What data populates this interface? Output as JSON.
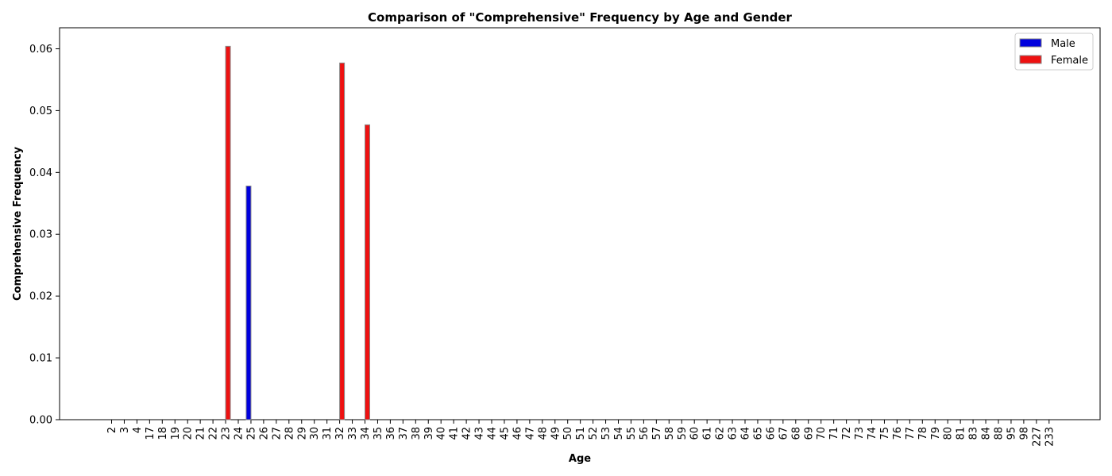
{
  "chart_data": {
    "type": "bar",
    "title": "Comparison of \"Comprehensive\" Frequency by Age and Gender",
    "xlabel": "Age",
    "ylabel": "Comprehensive Frequency",
    "categories": [
      "2",
      "3",
      "4",
      "17",
      "18",
      "19",
      "20",
      "21",
      "22",
      "23",
      "24",
      "25",
      "26",
      "27",
      "28",
      "29",
      "30",
      "31",
      "32",
      "33",
      "34",
      "35",
      "36",
      "37",
      "38",
      "39",
      "40",
      "41",
      "42",
      "43",
      "44",
      "45",
      "46",
      "47",
      "48",
      "49",
      "50",
      "51",
      "52",
      "53",
      "54",
      "55",
      "56",
      "57",
      "58",
      "59",
      "60",
      "61",
      "62",
      "63",
      "64",
      "65",
      "66",
      "67",
      "68",
      "69",
      "70",
      "71",
      "72",
      "73",
      "74",
      "75",
      "76",
      "77",
      "78",
      "79",
      "80",
      "81",
      "83",
      "84",
      "88",
      "95",
      "98",
      "227",
      "233"
    ],
    "series": [
      {
        "name": "Male",
        "color": "#0000dd",
        "values": [
          0,
          0,
          0,
          0,
          0,
          0,
          0,
          0,
          0,
          0,
          0,
          0.0378,
          0,
          0,
          0,
          0,
          0,
          0,
          0,
          0,
          0,
          0,
          0,
          0,
          0,
          0,
          0,
          0,
          0,
          0,
          0,
          0,
          0,
          0,
          0,
          0,
          0,
          0,
          0,
          0,
          0,
          0,
          0,
          0,
          0,
          0,
          0,
          0,
          0,
          0,
          0,
          0,
          0,
          0,
          0,
          0,
          0,
          0,
          0,
          0,
          0,
          0,
          0,
          0,
          0,
          0,
          0,
          0,
          0,
          0,
          0,
          0,
          0,
          0,
          0
        ]
      },
      {
        "name": "Female",
        "color": "#ee1111",
        "values": [
          0,
          0,
          0,
          0,
          0,
          0,
          0,
          0,
          0,
          0.0604,
          0,
          0,
          0,
          0,
          0,
          0,
          0,
          0,
          0.0577,
          0,
          0.0477,
          0,
          0,
          0,
          0,
          0,
          0,
          0,
          0,
          0,
          0,
          0,
          0,
          0,
          0,
          0,
          0,
          0,
          0,
          0,
          0,
          0,
          0,
          0,
          0,
          0,
          0,
          0,
          0,
          0,
          0,
          0,
          0,
          0,
          0,
          0,
          0,
          0,
          0,
          0,
          0,
          0,
          0,
          0,
          0,
          0,
          0,
          0,
          0,
          0,
          0,
          0,
          0,
          0,
          0
        ]
      }
    ],
    "ylim": [
      0,
      0.0634
    ],
    "yticks": [
      "0.00",
      "0.01",
      "0.02",
      "0.03",
      "0.04",
      "0.05",
      "0.06"
    ],
    "ytick_values": [
      0,
      0.01,
      0.02,
      0.03,
      0.04,
      0.05,
      0.06
    ],
    "grid": false,
    "legend_position": "top-right"
  }
}
